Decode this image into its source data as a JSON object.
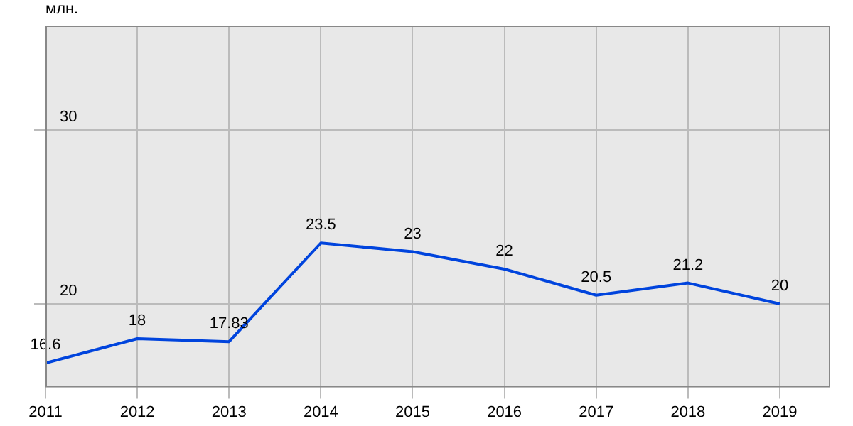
{
  "chart_data": {
    "type": "line",
    "ylabel": "млн.",
    "x": [
      2011,
      2012,
      2013,
      2014,
      2015,
      2016,
      2017,
      2018,
      2019
    ],
    "series": [
      {
        "color": "#0044dd",
        "values": [
          16.6,
          18,
          17.83,
          23.5,
          23,
          22,
          20.5,
          21.2,
          20
        ]
      }
    ],
    "xlim": [
      2011,
      2019.55
    ],
    "xticks": [
      2011,
      2012,
      2013,
      2014,
      2015,
      2016,
      2017,
      2018,
      2019
    ],
    "ylim": [
      15.2,
      36
    ],
    "yticks": [
      20,
      30
    ],
    "grid": true,
    "legend": false,
    "marker": "none",
    "line_style": "solid",
    "data_labels": true
  }
}
